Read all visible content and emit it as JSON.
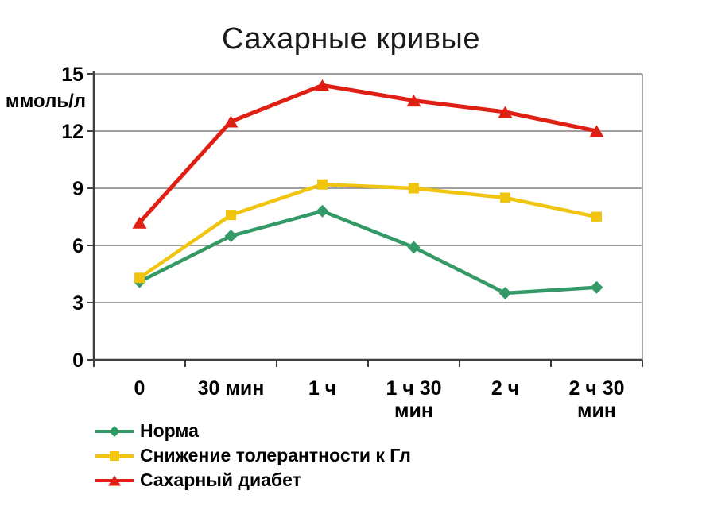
{
  "chart_data": {
    "type": "line",
    "title": "Сахарные кривые",
    "ylabel": "ммоль/л",
    "xlabel": "",
    "ylim": [
      0,
      15
    ],
    "yticks": [
      0,
      3,
      6,
      9,
      12,
      15
    ],
    "grid": "horizontal",
    "legend_position": "bottom-left",
    "categories": [
      "0",
      "30 мин",
      "1 ч",
      "1 ч 30 мин",
      "2 ч",
      "2 ч 30 мин"
    ],
    "category_label_lines": [
      [
        "0"
      ],
      [
        "30 мин"
      ],
      [
        "1 ч"
      ],
      [
        "1 ч 30",
        "мин"
      ],
      [
        "2 ч"
      ],
      [
        "2 ч 30",
        "мин"
      ]
    ],
    "series": [
      {
        "name": "Норма",
        "marker": "diamond",
        "color": "#339966",
        "values": [
          4.1,
          6.5,
          7.8,
          5.9,
          3.5,
          3.8
        ]
      },
      {
        "name": "Снижение толерантности к Гл",
        "marker": "square",
        "color": "#F1C40F",
        "values": [
          4.3,
          7.6,
          9.2,
          9.0,
          8.5,
          7.5
        ]
      },
      {
        "name": "Сахарный диабет",
        "marker": "triangle",
        "color": "#E01F14",
        "values": [
          7.2,
          12.5,
          14.4,
          13.6,
          13.0,
          12.0
        ]
      }
    ],
    "colors": {
      "axis": "#3f3f3f",
      "grid": "#808080",
      "plot_border": "#808080",
      "text": "#000000",
      "background": "#ffffff"
    }
  }
}
